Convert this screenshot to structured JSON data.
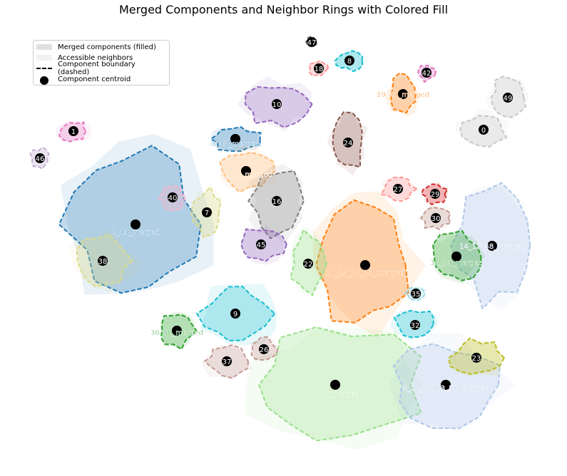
{
  "title": "Merged Components and Neighbor Rings with Colored Fill",
  "legend": {
    "filled": "Merged components (filled)",
    "neighbors": "Accessible neighbors",
    "boundary": "Component boundary (dashed)",
    "centroid": "Component centroid"
  },
  "components": [
    {
      "id": "2_44_merged",
      "color": "#1f77b4"
    },
    {
      "id": "3_43_merged",
      "color": "#1f77b4"
    },
    {
      "id": "21_41_merged",
      "color": "#ffbb78"
    },
    {
      "id": "16",
      "color": "#7f7f7f"
    },
    {
      "id": "10",
      "color": "#9467bd"
    },
    {
      "id": "24",
      "color": "#8c564b"
    },
    {
      "id": "19_41_merged",
      "color": "#ff7f0e"
    },
    {
      "id": "20_25_28_33_merged",
      "color": "#ff7f0e"
    },
    {
      "id": "5_39_merged",
      "color": "#98df8a"
    },
    {
      "id": "4_11_12_13_51_merged",
      "color": "#aec7e8"
    },
    {
      "id": "14_15_48_merged",
      "color": "#aec7e8"
    },
    {
      "id": "31_34_merged",
      "color": "#2ca02c"
    },
    {
      "id": "36_50_merged",
      "color": "#2ca02c"
    },
    {
      "id": "9",
      "color": "#17becf"
    },
    {
      "id": "0",
      "color": "#c7c7c7"
    },
    {
      "id": "1",
      "color": "#e377c2"
    },
    {
      "id": "7",
      "color": "#dbdb8d"
    },
    {
      "id": "8",
      "color": "#17becf"
    },
    {
      "id": "18",
      "color": "#ff9896"
    },
    {
      "id": "22",
      "color": "#98df8a"
    },
    {
      "id": "23",
      "color": "#bcbd22"
    },
    {
      "id": "26",
      "color": "#c49c94"
    },
    {
      "id": "27",
      "color": "#ff9896"
    },
    {
      "id": "29",
      "color": "#d62728"
    },
    {
      "id": "30",
      "color": "#c49c94"
    },
    {
      "id": "32",
      "color": "#17becf"
    },
    {
      "id": "35",
      "color": "#9edae5"
    },
    {
      "id": "37",
      "color": "#c49c94"
    },
    {
      "id": "38",
      "color": "#dbdb8d"
    },
    {
      "id": "40",
      "color": "#f7b6d2"
    },
    {
      "id": "42",
      "color": "#e377c2"
    },
    {
      "id": "45",
      "color": "#9467bd"
    },
    {
      "id": "46",
      "color": "#c5b0d5"
    },
    {
      "id": "47",
      "color": "#7f7f7f"
    },
    {
      "id": "49",
      "color": "#c7c7c7"
    }
  ]
}
